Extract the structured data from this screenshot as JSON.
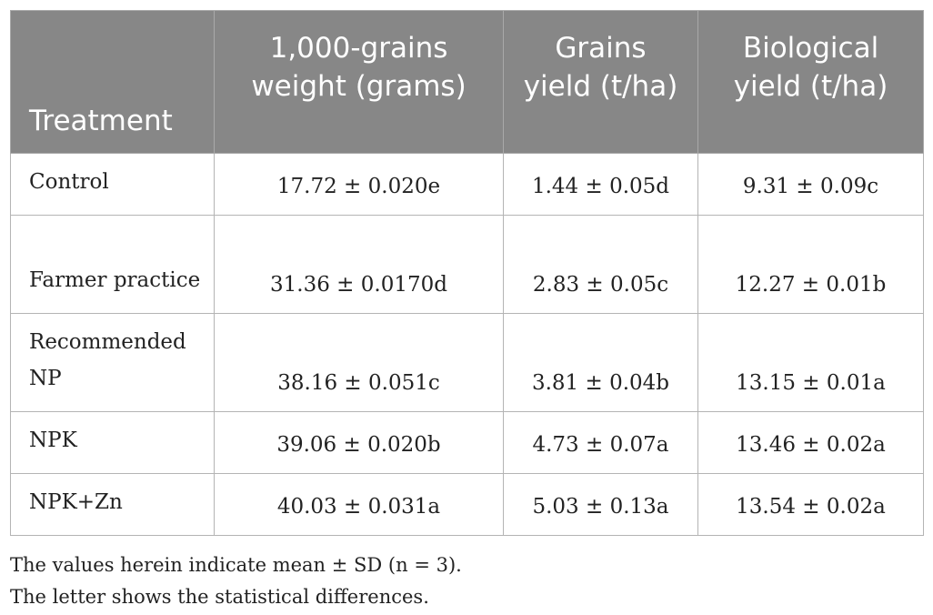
{
  "table": {
    "headers": [
      "Treatment",
      "1,000-grains weight (grams)",
      "Grains yield (t/ha)",
      "Biological yield (t/ha)"
    ],
    "rows": [
      {
        "treatment": "Control",
        "grain_weight": "17.72 ± 0.020e",
        "grain_yield": "1.44 ± 0.05d",
        "bio_yield": "9.31 ± 0.09c"
      },
      {
        "treatment": "Farmer practice",
        "grain_weight": "31.36 ± 0.0170d",
        "grain_yield": "2.83 ± 0.05c",
        "bio_yield": "12.27 ± 0.01b"
      },
      {
        "treatment": "Recommended NP",
        "grain_weight": "38.16 ± 0.051c",
        "grain_yield": "3.81 ± 0.04b",
        "bio_yield": "13.15 ± 0.01a"
      },
      {
        "treatment": "NPK",
        "grain_weight": "39.06 ± 0.020b",
        "grain_yield": "4.73 ± 0.07a",
        "bio_yield": "13.46 ± 0.02a"
      },
      {
        "treatment": "NPK+Zn",
        "grain_weight": "40.03 ± 0.031a",
        "grain_yield": "5.03 ± 0.13a",
        "bio_yield": "13.54 ± 0.02a"
      }
    ]
  },
  "footnotes": [
    "The values herein indicate mean ± SD (n = 3).",
    "The letter shows the statistical differences."
  ],
  "colors": {
    "header_background": "#878787",
    "header_text": "#ffffff",
    "body_text": "#222222",
    "border": "#b4b4b4"
  }
}
